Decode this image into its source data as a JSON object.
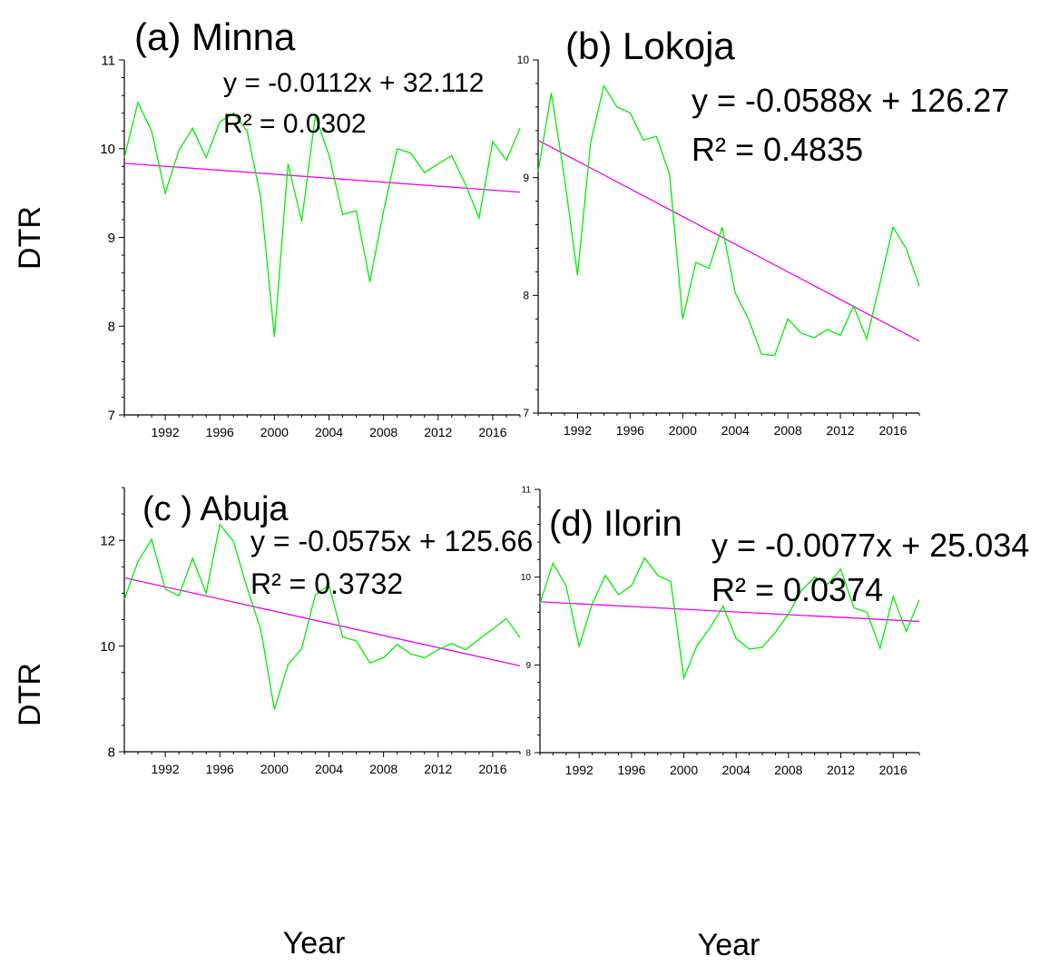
{
  "figure": {
    "ylabel": "DTR",
    "xlabel": "Year"
  },
  "colors": {
    "series": "#00ee00",
    "trend": "#ee00ee",
    "axis": "#000000"
  },
  "chart_data": [
    {
      "type": "line",
      "title": "(a) Minna",
      "equation": "y = -0.0112x + 32.112",
      "r2": "R² = 0.0302",
      "xlim": [
        1989,
        2018
      ],
      "ylim": [
        7,
        11
      ],
      "xticks": [
        1992,
        1996,
        2000,
        2004,
        2008,
        2012,
        2016
      ],
      "yticks": [
        7,
        8,
        9,
        10,
        11
      ],
      "x": [
        1989,
        1990,
        1991,
        1992,
        1993,
        1994,
        1995,
        1996,
        1997,
        1998,
        1999,
        2000,
        2001,
        2002,
        2003,
        2004,
        2005,
        2006,
        2007,
        2008,
        2009,
        2010,
        2011,
        2012,
        2013,
        2014,
        2015,
        2016,
        2017,
        2018
      ],
      "series": [
        {
          "values": [
            9.9,
            10.52,
            10.2,
            9.5,
            9.98,
            10.23,
            9.9,
            10.3,
            10.4,
            10.2,
            9.45,
            7.88,
            9.83,
            9.18,
            10.37,
            9.93,
            9.26,
            9.3,
            8.5,
            9.3,
            10.0,
            9.95,
            9.73,
            9.83,
            9.92,
            9.6,
            9.22,
            10.08,
            9.87,
            10.23
          ]
        }
      ],
      "trend": {
        "slope": -0.0112,
        "intercept": 32.112
      }
    },
    {
      "type": "line",
      "title": "(b) Lokoja",
      "equation": "y = -0.0588x + 126.27",
      "r2": "R² = 0.4835",
      "xlim": [
        1989,
        2018
      ],
      "ylim": [
        7,
        10
      ],
      "xticks": [
        1992,
        1996,
        2000,
        2004,
        2008,
        2012,
        2016
      ],
      "yticks": [
        7,
        8,
        9,
        10
      ],
      "x": [
        1989,
        1990,
        1991,
        1992,
        1993,
        1994,
        1995,
        1996,
        1997,
        1998,
        1999,
        2000,
        2001,
        2002,
        2003,
        2004,
        2005,
        2006,
        2007,
        2008,
        2009,
        2010,
        2011,
        2012,
        2013,
        2014,
        2015,
        2016,
        2017,
        2018
      ],
      "series": [
        {
          "values": [
            9.05,
            9.72,
            9.0,
            8.17,
            9.3,
            9.78,
            9.6,
            9.55,
            9.32,
            9.35,
            9.03,
            7.8,
            8.28,
            8.23,
            8.58,
            8.02,
            7.8,
            7.5,
            7.49,
            7.8,
            7.68,
            7.64,
            7.71,
            7.66,
            7.91,
            7.63,
            8.1,
            8.58,
            8.4,
            8.08
          ]
        }
      ],
      "trend": {
        "slope": -0.0588,
        "intercept": 126.27
      }
    },
    {
      "type": "line",
      "title": "(c ) Abuja",
      "equation": "y = -0.0575x + 125.66",
      "r2": "R² = 0.3732",
      "xlim": [
        1989,
        2018
      ],
      "ylim": [
        8,
        13
      ],
      "xticks": [
        1992,
        1996,
        2000,
        2004,
        2008,
        2012,
        2016
      ],
      "yticks": [
        8,
        10,
        12
      ],
      "x": [
        1989,
        1990,
        1991,
        1992,
        1993,
        1994,
        1995,
        1996,
        1997,
        1998,
        1999,
        2000,
        2001,
        2002,
        2003,
        2004,
        2005,
        2006,
        2007,
        2008,
        2009,
        2010,
        2011,
        2012,
        2013,
        2014,
        2015,
        2016,
        2017,
        2018
      ],
      "series": [
        {
          "values": [
            10.88,
            11.6,
            12.02,
            11.08,
            10.95,
            11.66,
            11.0,
            12.3,
            11.98,
            11.1,
            10.32,
            8.8,
            9.65,
            9.95,
            10.97,
            11.15,
            10.17,
            10.1,
            9.68,
            9.78,
            10.03,
            9.85,
            9.78,
            9.93,
            10.05,
            9.93,
            10.13,
            10.32,
            10.52,
            10.16
          ]
        }
      ],
      "trend": {
        "slope": -0.0575,
        "intercept": 125.66
      }
    },
    {
      "type": "line",
      "title": "(d) Ilorin",
      "equation": "y = -0.0077x + 25.034",
      "r2": "R² = 0.0374",
      "xlim": [
        1989,
        2018
      ],
      "ylim": [
        8,
        11
      ],
      "xticks": [
        1992,
        1996,
        2000,
        2004,
        2008,
        2012,
        2016
      ],
      "yticks": [
        8,
        9,
        10,
        11
      ],
      "x": [
        1989,
        1990,
        1991,
        1992,
        1993,
        1994,
        1995,
        1996,
        1997,
        1998,
        1999,
        2000,
        2001,
        2002,
        2003,
        2004,
        2005,
        2006,
        2007,
        2008,
        2009,
        2010,
        2011,
        2012,
        2013,
        2014,
        2015,
        2016,
        2017,
        2018
      ],
      "series": [
        {
          "values": [
            9.7,
            10.16,
            9.9,
            9.21,
            9.7,
            10.02,
            9.8,
            9.9,
            10.22,
            10.02,
            9.95,
            8.85,
            9.22,
            9.42,
            9.67,
            9.3,
            9.18,
            9.2,
            9.37,
            9.58,
            9.85,
            10.0,
            9.92,
            10.09,
            9.65,
            9.6,
            9.19,
            9.78,
            9.38,
            9.74
          ]
        }
      ],
      "trend": {
        "slope": -0.0077,
        "intercept": 25.034
      }
    }
  ]
}
